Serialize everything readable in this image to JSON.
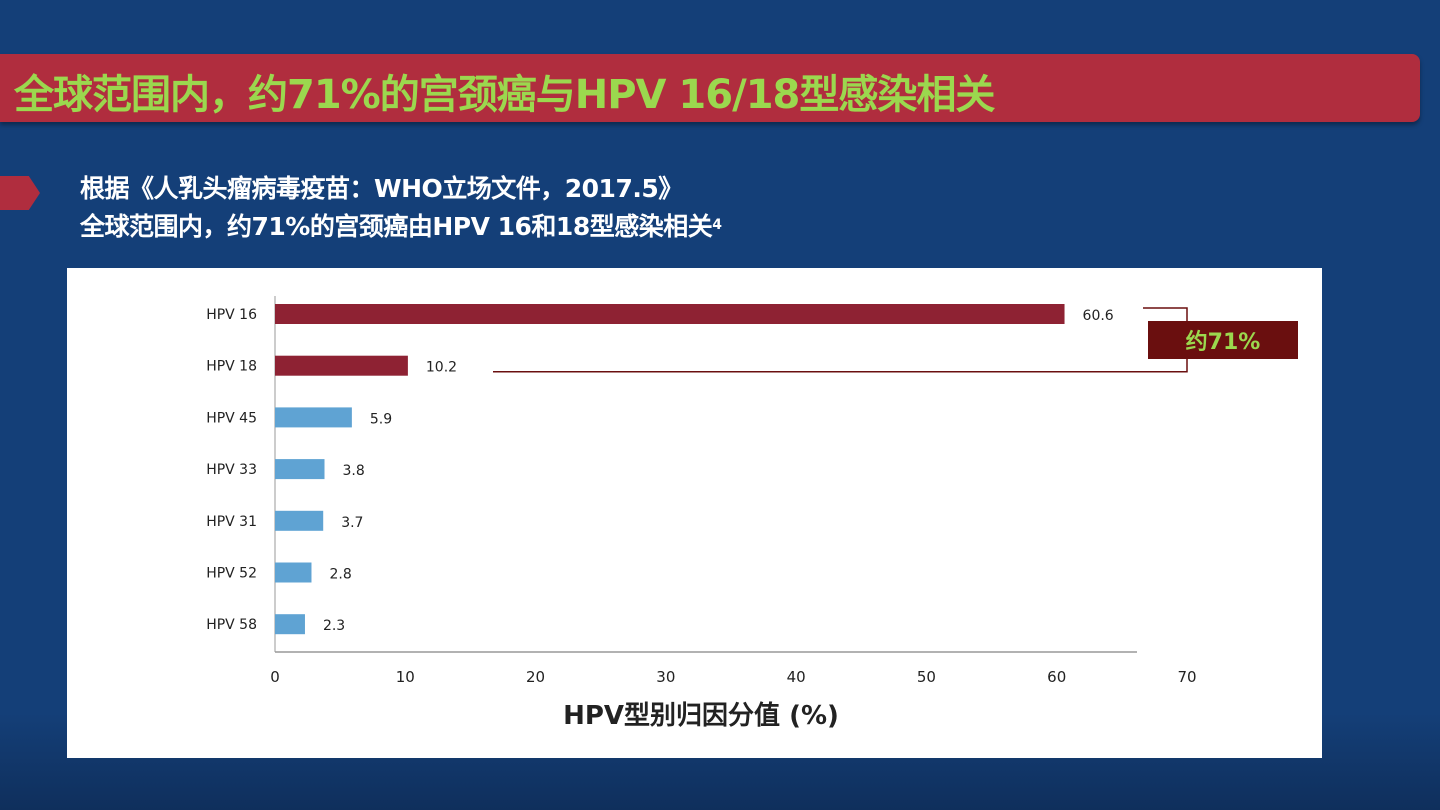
{
  "slide": {
    "title": "全球范围内，约71%的宫颈癌与HPV 16/18型感染相关",
    "subtitle_line1": "根据《人乳头瘤病毒疫苗：WHO立场文件，2017.5》",
    "subtitle_line2": "全球范围内，约71%的宫颈癌由HPV 16和18型感染相关",
    "subtitle_ref": "4",
    "annotation": "约71%",
    "colors": {
      "background": "#143f78",
      "title_bar": "#b02d3e",
      "title_text": "#9bd84e",
      "annotation_box": "#6a0f0f"
    }
  },
  "chart_data": {
    "type": "bar",
    "orientation": "horizontal",
    "categories": [
      "HPV 16",
      "HPV 18",
      "HPV 45",
      "HPV 33",
      "HPV 31",
      "HPV 52",
      "HPV 58"
    ],
    "values": [
      60.6,
      10.2,
      5.9,
      3.8,
      3.7,
      2.8,
      2.3
    ],
    "value_labels": [
      "60.6",
      "10.2",
      "5.9",
      "3.8",
      "3.7",
      "2.8",
      "2.3"
    ],
    "bar_colors": [
      "#8e2233",
      "#8e2233",
      "#5fa3d3",
      "#5fa3d3",
      "#5fa3d3",
      "#5fa3d3",
      "#5fa3d3"
    ],
    "xlabel": "HPV型别归因分值 (%)",
    "ylabel": "",
    "xlim": [
      0,
      70
    ],
    "xticks": [
      "0",
      "10",
      "20",
      "30",
      "40",
      "50",
      "60",
      "70"
    ],
    "grid": false,
    "annotation_bracket": {
      "categories": [
        "HPV 16",
        "HPV 18"
      ],
      "label": "约71%"
    }
  }
}
